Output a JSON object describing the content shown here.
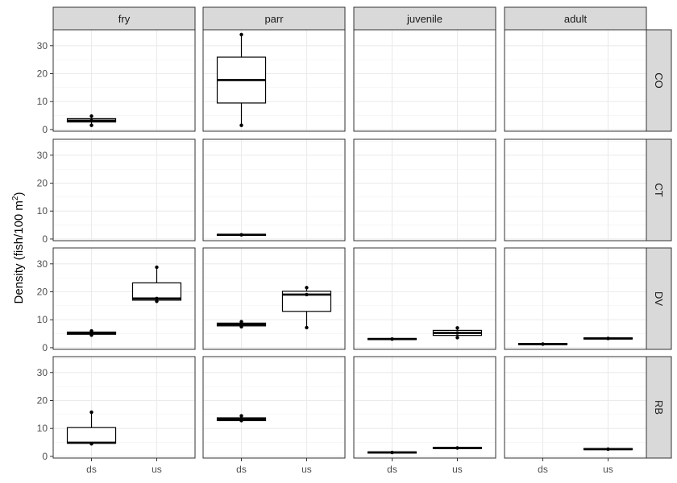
{
  "chart_data": {
    "type": "boxplot",
    "facet_columns": [
      "fry",
      "parr",
      "juvenile",
      "adult"
    ],
    "facet_rows": [
      "CO",
      "CT",
      "DV",
      "RB"
    ],
    "categories": [
      "ds",
      "us"
    ],
    "y_ticks": [
      0,
      10,
      20,
      30
    ],
    "ylim": [
      -0.6,
      35.7
    ],
    "ylabel_main": "Density (fish/100 m",
    "ylabel_sup": "2",
    "ylabel_close": ")",
    "xlabel": "",
    "grid": true,
    "boxes": [
      {
        "row": "CO",
        "col": "fry",
        "x": "ds",
        "q1": 2.7,
        "median": 3.2,
        "q3": 3.9,
        "whisker_low": 1.5,
        "whisker_high": 4.8,
        "points": [
          1.5,
          3.2,
          4.8
        ]
      },
      {
        "row": "CO",
        "col": "parr",
        "x": "ds",
        "q1": 9.5,
        "median": 17.7,
        "q3": 25.9,
        "whisker_low": 1.5,
        "whisker_high": 34.0,
        "points": [
          1.5,
          34.0
        ]
      },
      {
        "row": "CT",
        "col": "parr",
        "x": "ds",
        "q1": 1.3,
        "median": 1.5,
        "q3": 1.7,
        "whisker_low": 1.3,
        "whisker_high": 1.7,
        "points": [
          1.5
        ]
      },
      {
        "row": "DV",
        "col": "fry",
        "x": "ds",
        "q1": 4.8,
        "median": 5.2,
        "q3": 5.6,
        "whisker_low": 4.5,
        "whisker_high": 6.0,
        "points": [
          4.5,
          5.2,
          6.0
        ]
      },
      {
        "row": "DV",
        "col": "fry",
        "x": "us",
        "q1": 17.0,
        "median": 17.6,
        "q3": 23.2,
        "whisker_low": 16.6,
        "whisker_high": 28.8,
        "points": [
          16.6,
          17.6,
          28.8
        ]
      },
      {
        "row": "DV",
        "col": "parr",
        "x": "ds",
        "q1": 7.8,
        "median": 8.3,
        "q3": 8.8,
        "whisker_low": 7.5,
        "whisker_high": 9.3,
        "points": [
          7.5,
          8.3,
          9.3
        ]
      },
      {
        "row": "DV",
        "col": "parr",
        "x": "us",
        "q1": 13.0,
        "median": 19.0,
        "q3": 20.2,
        "whisker_low": 7.2,
        "whisker_high": 21.5,
        "points": [
          7.2,
          19.0,
          21.5
        ]
      },
      {
        "row": "DV",
        "col": "juvenile",
        "x": "ds",
        "q1": 2.9,
        "median": 3.1,
        "q3": 3.3,
        "whisker_low": 2.9,
        "whisker_high": 3.3,
        "points": [
          3.1
        ]
      },
      {
        "row": "DV",
        "col": "juvenile",
        "x": "us",
        "q1": 4.4,
        "median": 5.3,
        "q3": 6.2,
        "whisker_low": 3.6,
        "whisker_high": 7.1,
        "points": [
          3.6,
          5.3,
          7.1
        ]
      },
      {
        "row": "DV",
        "col": "adult",
        "x": "ds",
        "q1": 1.1,
        "median": 1.3,
        "q3": 1.5,
        "whisker_low": 1.1,
        "whisker_high": 1.5,
        "points": [
          1.3
        ]
      },
      {
        "row": "DV",
        "col": "adult",
        "x": "us",
        "q1": 3.1,
        "median": 3.3,
        "q3": 3.5,
        "whisker_low": 3.1,
        "whisker_high": 3.5,
        "points": [
          3.3
        ]
      },
      {
        "row": "RB",
        "col": "fry",
        "x": "ds",
        "q1": 4.7,
        "median": 4.9,
        "q3": 10.3,
        "whisker_low": 4.5,
        "whisker_high": 15.8,
        "points": [
          4.5,
          15.8
        ]
      },
      {
        "row": "RB",
        "col": "parr",
        "x": "ds",
        "q1": 12.8,
        "median": 13.3,
        "q3": 13.8,
        "whisker_low": 12.8,
        "whisker_high": 14.5,
        "points": [
          12.8,
          14.5
        ]
      },
      {
        "row": "RB",
        "col": "juvenile",
        "x": "ds",
        "q1": 1.2,
        "median": 1.4,
        "q3": 1.6,
        "whisker_low": 1.2,
        "whisker_high": 1.6,
        "points": [
          1.4
        ]
      },
      {
        "row": "RB",
        "col": "juvenile",
        "x": "us",
        "q1": 2.8,
        "median": 3.0,
        "q3": 3.2,
        "whisker_low": 2.8,
        "whisker_high": 3.2,
        "points": [
          3.0
        ]
      },
      {
        "row": "RB",
        "col": "adult",
        "x": "us",
        "q1": 2.4,
        "median": 2.6,
        "q3": 2.8,
        "whisker_low": 2.4,
        "whisker_high": 2.8,
        "points": [
          2.6
        ]
      }
    ]
  }
}
